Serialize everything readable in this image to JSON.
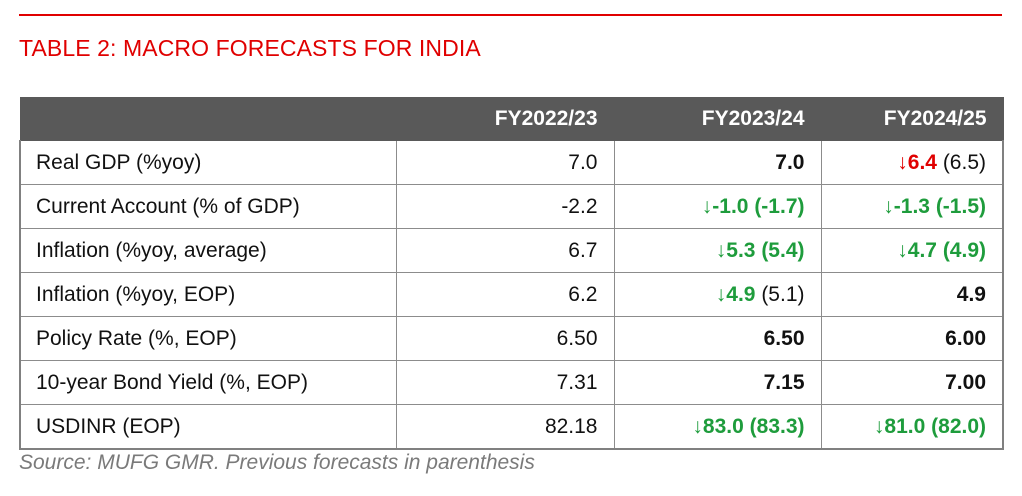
{
  "title": "TABLE 2: MACRO FORECASTS FOR INDIA",
  "colors": {
    "accent_red": "#e00000",
    "header_bg": "#595959",
    "down_green": "#1e9c3c",
    "source_gray": "#7a7a7a"
  },
  "table": {
    "headers": [
      "",
      "FY2022/23",
      "FY2023/24",
      "FY2024/25"
    ],
    "rows": [
      {
        "label": "Real GDP (%yoy)",
        "cells": [
          {
            "value": "7.0",
            "style": "normal"
          },
          {
            "value": "7.0",
            "style": "bold"
          },
          {
            "arrow": "↓",
            "value": "6.4",
            "prev": "(6.5)",
            "style": "red-value"
          }
        ]
      },
      {
        "label": "Current Account (% of GDP)",
        "cells": [
          {
            "value": "-2.2",
            "style": "normal"
          },
          {
            "arrow": "↓",
            "value": "-1.0",
            "prev": "(-1.7)",
            "style": "green-all"
          },
          {
            "arrow": "↓",
            "value": "-1.3",
            "prev": "(-1.5)",
            "style": "green-all"
          }
        ]
      },
      {
        "label": "Inflation (%yoy, average)",
        "cells": [
          {
            "value": "6.7",
            "style": "normal"
          },
          {
            "arrow": "↓",
            "value": "5.3",
            "prev": "(5.4)",
            "style": "green-all"
          },
          {
            "arrow": "↓",
            "value": "4.7",
            "prev": "(4.9)",
            "style": "green-all"
          }
        ]
      },
      {
        "label": "Inflation (%yoy, EOP)",
        "cells": [
          {
            "value": "6.2",
            "style": "normal"
          },
          {
            "arrow": "↓",
            "value": "4.9",
            "prev": "(5.1)",
            "style": "green-value"
          },
          {
            "value": "4.9",
            "style": "bold"
          }
        ]
      },
      {
        "label": "Policy Rate (%, EOP)",
        "cells": [
          {
            "value": "6.50",
            "style": "normal"
          },
          {
            "value": "6.50",
            "style": "bold"
          },
          {
            "value": "6.00",
            "style": "bold"
          }
        ]
      },
      {
        "label": "10-year Bond Yield (%, EOP)",
        "cells": [
          {
            "value": "7.31",
            "style": "normal"
          },
          {
            "value": "7.15",
            "style": "bold"
          },
          {
            "value": "7.00",
            "style": "bold"
          }
        ]
      },
      {
        "label": "USDINR (EOP)",
        "cells": [
          {
            "value": "82.18",
            "style": "normal"
          },
          {
            "arrow": "↓",
            "value": "83.0",
            "prev": "(83.3)",
            "style": "green-all"
          },
          {
            "arrow": "↓",
            "value": "81.0",
            "prev": "(82.0)",
            "style": "green-all"
          }
        ]
      }
    ]
  },
  "source": "Source: MUFG GMR. Previous forecasts in parenthesis"
}
